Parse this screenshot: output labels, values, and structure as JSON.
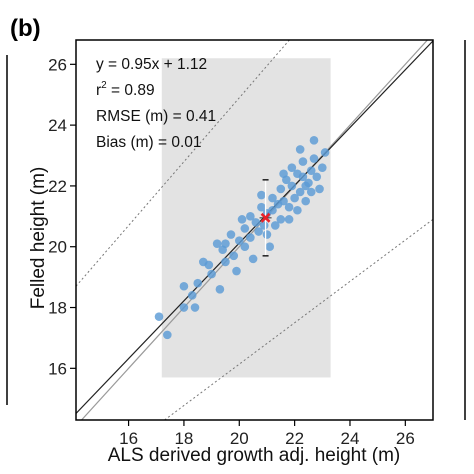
{
  "panel_label": "(b)",
  "chart_data": {
    "type": "scatter",
    "title": "",
    "xlabel": "ALS derived growth adj. height (m)",
    "ylabel": "Felled height (m)",
    "xlim": [
      14.1,
      27.0
    ],
    "ylim": [
      14.3,
      26.8
    ],
    "xticks": [
      "16",
      "18",
      "20",
      "22",
      "24",
      "26"
    ],
    "yticks": [
      "16",
      "18",
      "20",
      "22",
      "24",
      "26"
    ],
    "grid": false,
    "annotations": {
      "equation": "y = 0.95x + 1.12",
      "r2_base": "r",
      "r2_sup": "2",
      "r2_value": " = 0.89",
      "rmse": "RMSE (m) = 0.41",
      "bias": "Bias (m) = 0.01"
    },
    "colors": {
      "points": "#5b9bd5",
      "mean": "#e8222a",
      "range_box": "#e3e3e3"
    },
    "range_box": {
      "x": [
        17.2,
        23.3
      ],
      "y": [
        15.7,
        26.2
      ]
    },
    "regression_line": {
      "slope": 0.95,
      "intercept": 1.12
    },
    "prediction_bounds": [
      {
        "x": [
          14.1,
          22.0
        ],
        "y": [
          18.7,
          27.0
        ]
      },
      {
        "x": [
          17.3,
          27.0
        ],
        "y": [
          14.3,
          20.9
        ]
      }
    ],
    "mean_point": {
      "x": 20.95,
      "y": 20.95,
      "y_err": [
        19.7,
        22.2
      ]
    },
    "points": [
      [
        17.1,
        17.7
      ],
      [
        17.4,
        17.1
      ],
      [
        18.0,
        18.7
      ],
      [
        18.0,
        18.0
      ],
      [
        18.3,
        18.4
      ],
      [
        18.5,
        18.8
      ],
      [
        18.4,
        18.0
      ],
      [
        18.7,
        19.5
      ],
      [
        18.9,
        19.4
      ],
      [
        19.0,
        19.1
      ],
      [
        19.3,
        18.6
      ],
      [
        19.5,
        19.5
      ],
      [
        19.5,
        20.1
      ],
      [
        19.7,
        20.4
      ],
      [
        19.8,
        19.7
      ],
      [
        19.9,
        19.2
      ],
      [
        20.0,
        20.2
      ],
      [
        20.2,
        20.0
      ],
      [
        20.2,
        20.6
      ],
      [
        20.4,
        21.0
      ],
      [
        20.4,
        20.3
      ],
      [
        20.5,
        19.6
      ],
      [
        20.6,
        20.8
      ],
      [
        20.7,
        20.5
      ],
      [
        20.8,
        21.3
      ],
      [
        20.9,
        20.7
      ],
      [
        21.0,
        21.1
      ],
      [
        21.0,
        20.4
      ],
      [
        21.1,
        20.0
      ],
      [
        21.2,
        21.2
      ],
      [
        21.3,
        20.7
      ],
      [
        21.2,
        21.6
      ],
      [
        21.4,
        21.4
      ],
      [
        21.5,
        20.9
      ],
      [
        21.5,
        21.9
      ],
      [
        21.6,
        21.5
      ],
      [
        21.7,
        22.2
      ],
      [
        21.8,
        21.3
      ],
      [
        21.8,
        20.9
      ],
      [
        21.9,
        22.0
      ],
      [
        22.0,
        21.6
      ],
      [
        22.1,
        22.4
      ],
      [
        22.1,
        21.2
      ],
      [
        22.2,
        21.8
      ],
      [
        22.3,
        22.3
      ],
      [
        22.3,
        22.8
      ],
      [
        22.4,
        21.5
      ],
      [
        22.5,
        22.1
      ],
      [
        22.6,
        22.5
      ],
      [
        22.6,
        21.8
      ],
      [
        22.7,
        22.9
      ],
      [
        22.8,
        22.3
      ],
      [
        22.9,
        21.9
      ],
      [
        23.0,
        22.6
      ],
      [
        23.1,
        23.1
      ],
      [
        22.7,
        23.5
      ],
      [
        22.2,
        23.2
      ],
      [
        21.9,
        22.6
      ],
      [
        22.4,
        22.0
      ],
      [
        21.6,
        22.4
      ],
      [
        20.8,
        21.7
      ],
      [
        20.1,
        20.9
      ],
      [
        19.4,
        19.9
      ],
      [
        19.2,
        20.1
      ]
    ]
  }
}
